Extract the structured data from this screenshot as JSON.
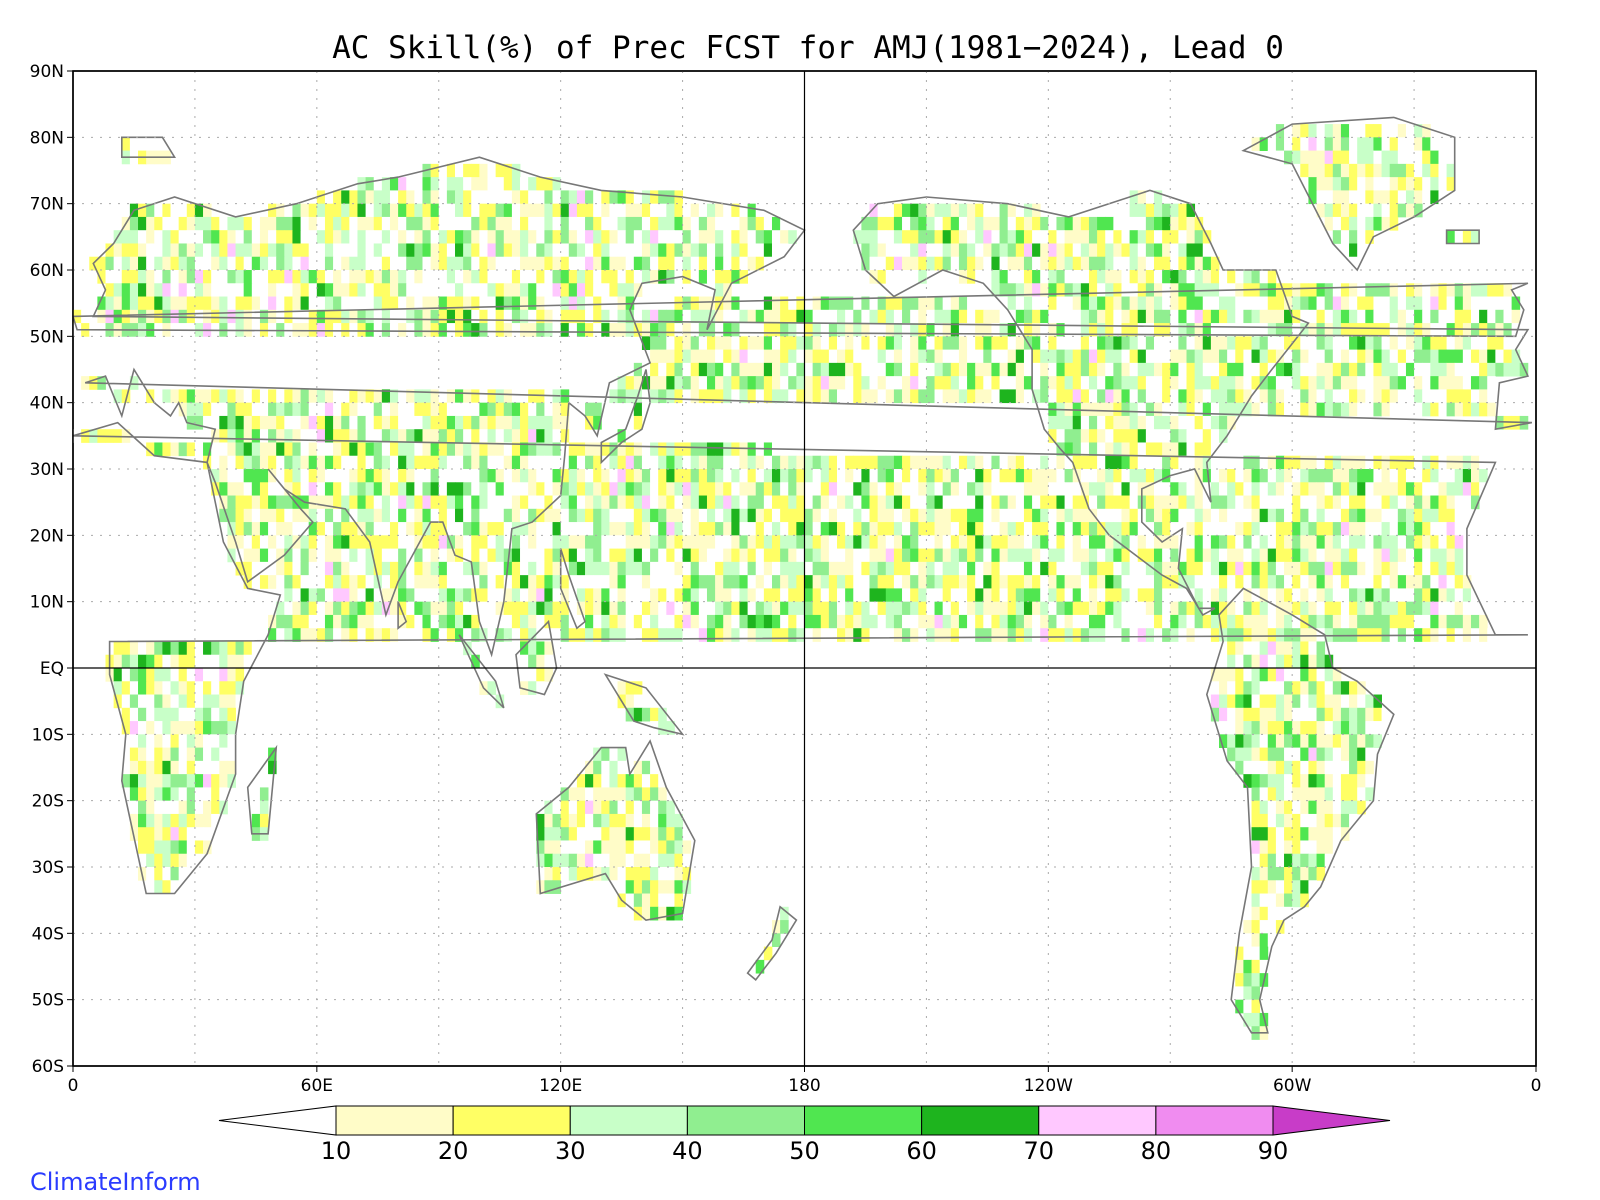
{
  "title": "AC Skill(%) of Prec FCST for AMJ(1981−2024), Lead 0",
  "credit": "ClimateInform",
  "lat_labels": [
    "90N",
    "80N",
    "70N",
    "60N",
    "50N",
    "40N",
    "30N",
    "20N",
    "10N",
    "EQ",
    "10S",
    "20S",
    "30S",
    "40S",
    "50S",
    "60S"
  ],
  "lon_labels": [
    "0",
    "60E",
    "120E",
    "180",
    "120W",
    "60W",
    "0"
  ],
  "colorbar": {
    "labels": [
      "10",
      "20",
      "30",
      "40",
      "50",
      "60",
      "70",
      "80",
      "90"
    ],
    "colors": [
      "#ffffff",
      "#fffcc8",
      "#ffff64",
      "#c8ffc8",
      "#90ee90",
      "#50e650",
      "#1eb41e",
      "#ffc8ff",
      "#f08cf0",
      "#c83cc8"
    ]
  },
  "colors": {
    "coast": "#777777",
    "lake": "#000000",
    "grid": "#aaaaaa"
  }
}
